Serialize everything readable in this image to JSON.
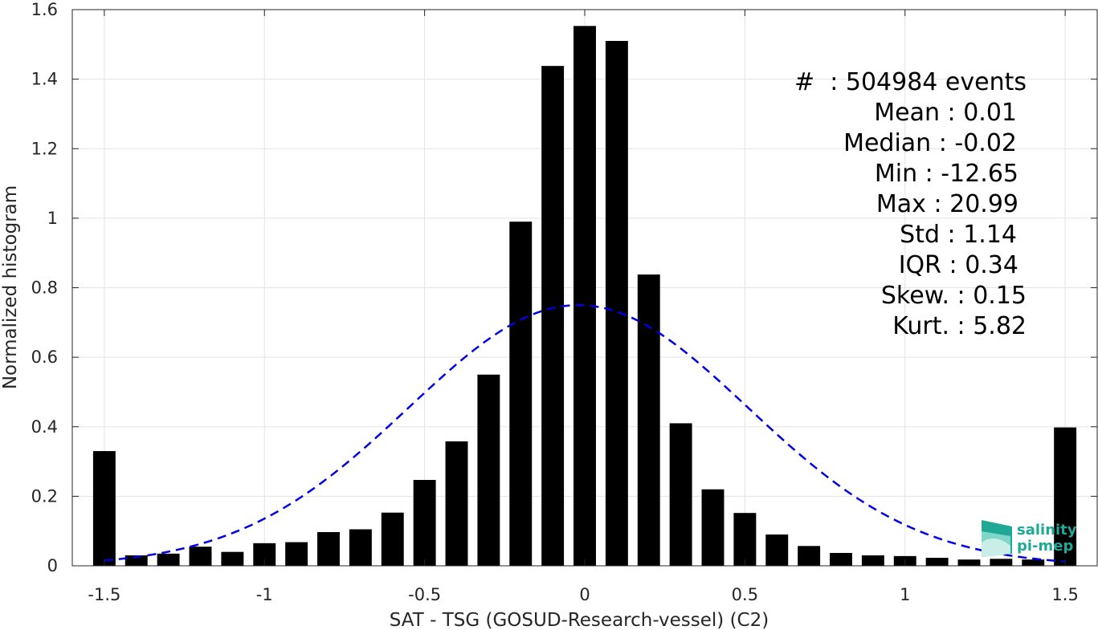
{
  "chart_data": {
    "type": "bar",
    "xlabel": "SAT - TSG (GOSUD-Research-vessel) (C2)",
    "ylabel": "Normalized histogram",
    "xlim": [
      -1.6,
      1.6
    ],
    "ylim": [
      0,
      1.6
    ],
    "xticks": [
      -1.5,
      -1,
      -0.5,
      0,
      0.5,
      1,
      1.5
    ],
    "xtick_labels": [
      "-1.5",
      "-1",
      "-0.5",
      "0",
      "0.5",
      "1",
      "1.5"
    ],
    "yticks": [
      0,
      0.2,
      0.4,
      0.6,
      0.8,
      1,
      1.2,
      1.4,
      1.6
    ],
    "ytick_labels": [
      "0",
      "0.2",
      "0.4",
      "0.6",
      "0.8",
      "1",
      "1.2",
      "1.4",
      "1.6"
    ],
    "grid": true,
    "bar_width": 0.07,
    "bins_x": [
      -1.5,
      -1.4,
      -1.3,
      -1.2,
      -1.1,
      -1.0,
      -0.9,
      -0.8,
      -0.7,
      -0.6,
      -0.5,
      -0.4,
      -0.3,
      -0.2,
      -0.1,
      0.0,
      0.1,
      0.2,
      0.3,
      0.4,
      0.5,
      0.6,
      0.7,
      0.8,
      0.9,
      1.0,
      1.1,
      1.2,
      1.3,
      1.4,
      1.5
    ],
    "values": [
      0.33,
      0.03,
      0.035,
      0.055,
      0.04,
      0.065,
      0.068,
      0.097,
      0.105,
      0.153,
      0.247,
      0.358,
      0.55,
      0.99,
      1.438,
      1.553,
      1.51,
      0.838,
      0.41,
      0.22,
      0.152,
      0.09,
      0.057,
      0.037,
      0.03,
      0.028,
      0.023,
      0.018,
      0.02,
      0.018,
      0.398
    ],
    "fit": {
      "type": "gaussian",
      "style": "dashed",
      "color": "#0000e6",
      "mean": -0.02,
      "peak": 0.75,
      "sigma": 0.53,
      "x_range": [
        -1.5,
        1.5
      ]
    },
    "bar_color": "#000000",
    "stats_lines": [
      "#  : 504984 events",
      "Mean : 0.01",
      "Median : -0.02",
      "Min : -12.65",
      "Max : 20.99",
      "Std : 1.14",
      "IQR : 0.34",
      "Skew. : 0.15",
      "Kurt. : 5.82"
    ]
  },
  "logo": {
    "line1": "salinity",
    "line2": "pi-mep",
    "color": "#1fa896"
  }
}
